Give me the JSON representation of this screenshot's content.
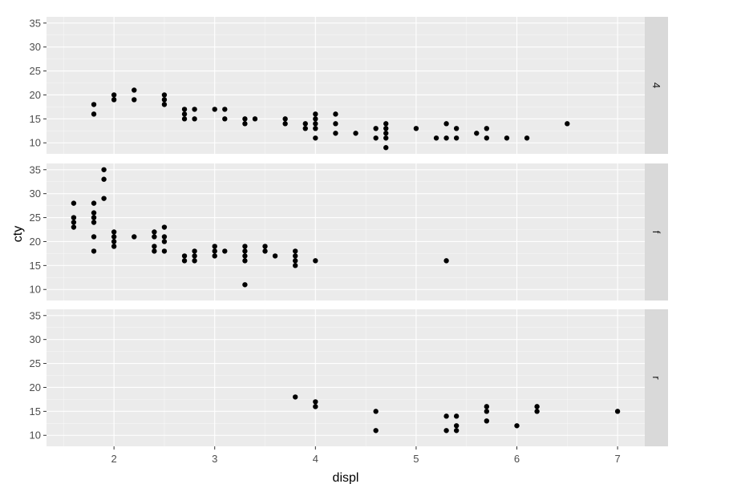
{
  "chart_data": {
    "type": "scatter",
    "facet_layout": "rows",
    "xlabel": "displ",
    "ylabel": "cty",
    "xlim": [
      1.33,
      7.27
    ],
    "ylim": [
      7.7,
      36.3
    ],
    "x_ticks": [
      2,
      3,
      4,
      5,
      6,
      7
    ],
    "y_ticks": [
      10,
      15,
      20,
      25,
      30,
      35
    ],
    "grid": true,
    "colors": {
      "panel_background": "#ebebeb",
      "grid_major": "#ffffff",
      "strip_background": "#d9d9d9",
      "point": "#000000"
    },
    "facets": [
      {
        "label": "4",
        "points": [
          [
            1.8,
            18
          ],
          [
            1.8,
            16
          ],
          [
            2.0,
            20
          ],
          [
            2.0,
            19
          ],
          [
            2.2,
            21
          ],
          [
            2.2,
            19
          ],
          [
            2.5,
            20
          ],
          [
            2.5,
            19
          ],
          [
            2.5,
            18
          ],
          [
            2.7,
            17
          ],
          [
            2.7,
            16
          ],
          [
            2.7,
            15
          ],
          [
            2.8,
            17
          ],
          [
            2.8,
            15
          ],
          [
            3.0,
            17
          ],
          [
            3.1,
            17
          ],
          [
            3.1,
            15
          ],
          [
            3.3,
            15
          ],
          [
            3.3,
            14
          ],
          [
            3.4,
            15
          ],
          [
            3.7,
            15
          ],
          [
            3.7,
            14
          ],
          [
            3.9,
            14
          ],
          [
            3.9,
            13
          ],
          [
            4.0,
            16
          ],
          [
            4.0,
            15
          ],
          [
            4.0,
            14
          ],
          [
            4.0,
            13
          ],
          [
            4.0,
            11
          ],
          [
            4.2,
            16
          ],
          [
            4.2,
            14
          ],
          [
            4.2,
            12
          ],
          [
            4.4,
            12
          ],
          [
            4.6,
            13
          ],
          [
            4.6,
            11
          ],
          [
            4.7,
            14
          ],
          [
            4.7,
            13
          ],
          [
            4.7,
            12
          ],
          [
            4.7,
            11
          ],
          [
            4.7,
            9
          ],
          [
            5.0,
            13
          ],
          [
            5.2,
            11
          ],
          [
            5.3,
            14
          ],
          [
            5.3,
            11
          ],
          [
            5.4,
            13
          ],
          [
            5.4,
            11
          ],
          [
            5.6,
            12
          ],
          [
            5.7,
            13
          ],
          [
            5.7,
            11
          ],
          [
            5.9,
            11
          ],
          [
            6.1,
            11
          ],
          [
            6.5,
            14
          ]
        ]
      },
      {
        "label": "f",
        "points": [
          [
            1.6,
            28
          ],
          [
            1.6,
            25
          ],
          [
            1.6,
            24
          ],
          [
            1.6,
            23
          ],
          [
            1.8,
            28
          ],
          [
            1.8,
            26
          ],
          [
            1.8,
            25
          ],
          [
            1.8,
            24
          ],
          [
            1.8,
            21
          ],
          [
            1.8,
            18
          ],
          [
            1.9,
            35
          ],
          [
            1.9,
            33
          ],
          [
            1.9,
            29
          ],
          [
            2.0,
            22
          ],
          [
            2.0,
            21
          ],
          [
            2.0,
            20
          ],
          [
            2.0,
            19
          ],
          [
            2.2,
            21
          ],
          [
            2.4,
            22
          ],
          [
            2.4,
            21
          ],
          [
            2.4,
            19
          ],
          [
            2.4,
            18
          ],
          [
            2.5,
            23
          ],
          [
            2.5,
            21
          ],
          [
            2.5,
            20
          ],
          [
            2.5,
            18
          ],
          [
            2.7,
            17
          ],
          [
            2.7,
            16
          ],
          [
            2.8,
            18
          ],
          [
            2.8,
            17
          ],
          [
            2.8,
            16
          ],
          [
            3.0,
            19
          ],
          [
            3.0,
            18
          ],
          [
            3.0,
            17
          ],
          [
            3.1,
            18
          ],
          [
            3.3,
            19
          ],
          [
            3.3,
            18
          ],
          [
            3.3,
            17
          ],
          [
            3.3,
            16
          ],
          [
            3.3,
            11
          ],
          [
            3.5,
            19
          ],
          [
            3.5,
            18
          ],
          [
            3.6,
            17
          ],
          [
            3.8,
            18
          ],
          [
            3.8,
            17
          ],
          [
            3.8,
            16
          ],
          [
            3.8,
            15
          ],
          [
            4.0,
            16
          ],
          [
            5.3,
            16
          ]
        ]
      },
      {
        "label": "r",
        "points": [
          [
            3.8,
            18
          ],
          [
            4.0,
            17
          ],
          [
            4.0,
            16
          ],
          [
            4.6,
            15
          ],
          [
            4.6,
            11
          ],
          [
            5.3,
            14
          ],
          [
            5.3,
            11
          ],
          [
            5.4,
            14
          ],
          [
            5.4,
            12
          ],
          [
            5.4,
            11
          ],
          [
            5.7,
            16
          ],
          [
            5.7,
            15
          ],
          [
            5.7,
            13
          ],
          [
            6.0,
            12
          ],
          [
            6.2,
            16
          ],
          [
            6.2,
            15
          ],
          [
            7.0,
            15
          ]
        ]
      }
    ]
  }
}
